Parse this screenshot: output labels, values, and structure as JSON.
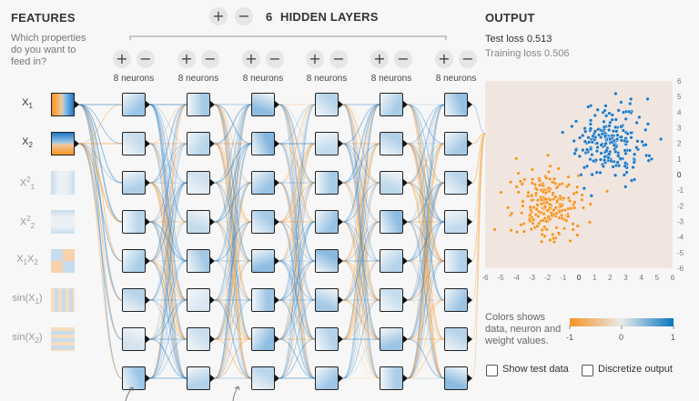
{
  "features": {
    "title": "FEATURES",
    "subtitle": [
      "Which properties",
      "do you want to",
      "feed in?"
    ],
    "items": [
      {
        "label_main": "X",
        "label_sub": "1",
        "label_sup": "",
        "active": true
      },
      {
        "label_main": "X",
        "label_sub": "2",
        "label_sup": "",
        "active": true
      },
      {
        "label_main": "X",
        "label_sub": "1",
        "label_sup": "2",
        "active": false
      },
      {
        "label_main": "X",
        "label_sub": "2",
        "label_sup": "2",
        "active": false
      },
      {
        "label_main": "X",
        "label_sub": "1",
        "label_sup": "",
        "label_main2": "X",
        "label_sub2": "2",
        "active": false
      },
      {
        "label_main": "sin(X",
        "label_sub": "1",
        "label_close": ")",
        "active": false
      },
      {
        "label_main": "sin(X",
        "label_sub": "2",
        "label_close": ")",
        "active": false
      }
    ]
  },
  "layers": {
    "count": "6",
    "title": "HIDDEN LAYERS",
    "add_glyph": "+",
    "remove_glyph": "−",
    "neuron_labels": [
      "8 neurons",
      "8 neurons",
      "8 neurons",
      "8 neurons",
      "8 neurons",
      "8 neurons"
    ]
  },
  "output": {
    "title": "OUTPUT",
    "test_loss": "Test loss 0.513",
    "training_loss": "Training loss 0.506"
  },
  "plot": {
    "x_ticks": [
      "-6",
      "-5",
      "-4",
      "-3",
      "-2",
      "-1",
      "0",
      "1",
      "2",
      "3",
      "4",
      "5",
      "6"
    ],
    "y_ticks": [
      "6",
      "5",
      "4",
      "3",
      "2",
      "1",
      "0",
      "-1",
      "-2",
      "-3",
      "-4",
      "-5",
      "-6"
    ],
    "range": [
      -6,
      6
    ],
    "colors": {
      "positive": "#1f77c4",
      "negative": "#f59322",
      "background": "#f0e6df"
    }
  },
  "legend": {
    "text": [
      "Colors shows",
      "data, neuron and",
      "weight values."
    ],
    "min": "-1",
    "mid": "0",
    "max": "1"
  },
  "options": {
    "show_test_data": "Show test data",
    "discretize_output": "Discretize output"
  }
}
